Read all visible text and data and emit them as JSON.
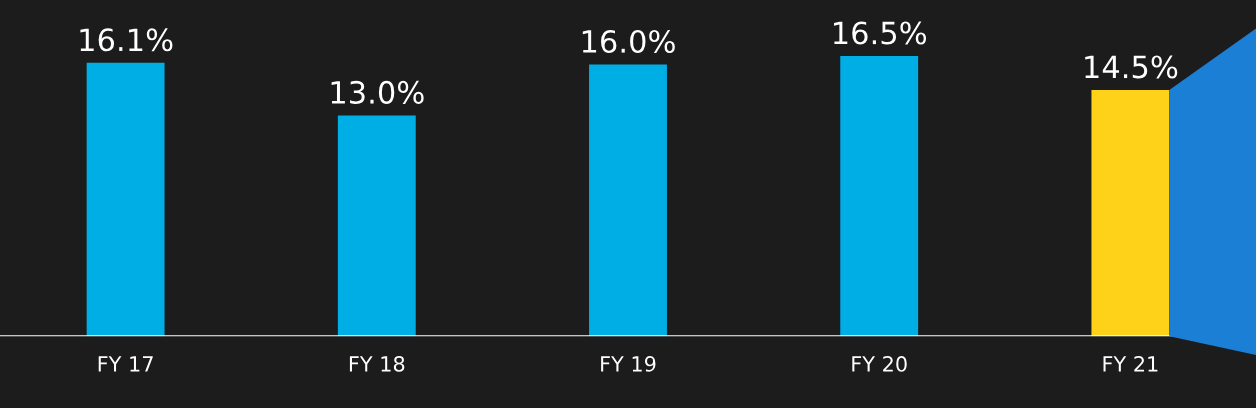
{
  "chart_data": {
    "type": "bar",
    "categories": [
      "FY 17",
      "FY 18",
      "FY 19",
      "FY 20",
      "FY 21"
    ],
    "values": [
      16.1,
      13.0,
      16.0,
      16.5,
      14.5
    ],
    "colors": [
      "#00aee6",
      "#00aee6",
      "#00aee6",
      "#00aee6",
      "#ffd21a"
    ],
    "data_labels": true,
    "value_labels": [
      "16.1%",
      "13.0%",
      "16.0%",
      "16.5%",
      "14.5%"
    ],
    "grid": false,
    "legend": false
  }
}
